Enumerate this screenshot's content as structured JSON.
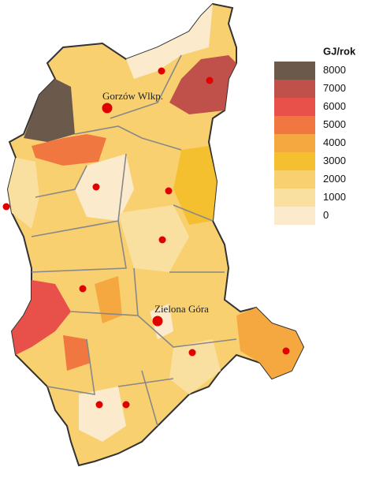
{
  "map": {
    "legend": {
      "title": "GJ/rok",
      "items": [
        {
          "value": 8000,
          "color": "#6b5a4c"
        },
        {
          "value": 7000,
          "color": "#c0504a"
        },
        {
          "value": 6000,
          "color": "#e8504a"
        },
        {
          "value": 5000,
          "color": "#f07840"
        },
        {
          "value": 4000,
          "color": "#f5a840"
        },
        {
          "value": 3000,
          "color": "#f5c030"
        },
        {
          "value": 2000,
          "color": "#f8d070"
        },
        {
          "value": 1000,
          "color": "#fae0a0"
        },
        {
          "value": 0,
          "color": "#fbeacc"
        }
      ]
    },
    "cities": [
      {
        "name": "Gorzów Wlkp."
      },
      {
        "name": "Zielona Góra"
      }
    ]
  }
}
